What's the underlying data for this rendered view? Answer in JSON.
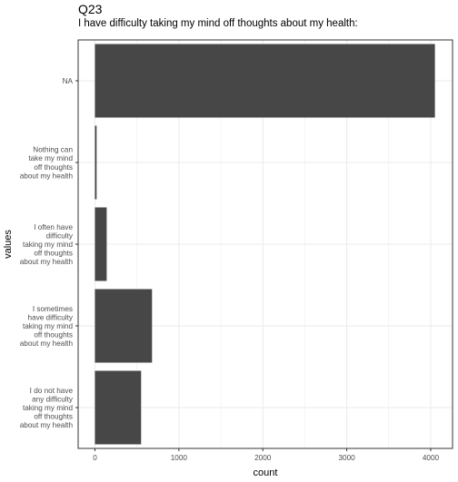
{
  "chart_data": {
    "type": "bar",
    "orientation": "horizontal",
    "title": "Q23",
    "subtitle": "I have difficulty taking my mind off thoughts about my health:",
    "xlabel": "count",
    "ylabel": "values",
    "categories": [
      "NA",
      "Nothing can take my mind off thoughts about my health",
      "I often have difficulty taking my mind off thoughts about my health",
      "I sometimes have difficulty taking my mind off thoughts about my health",
      "I do not have any difficulty taking my mind off thoughts about my health"
    ],
    "category_lines": [
      [
        "NA"
      ],
      [
        "Nothing can",
        "take my mind",
        "off thoughts",
        "about my health"
      ],
      [
        "I often have",
        "difficulty",
        "taking my mind",
        "off thoughts",
        "about my health"
      ],
      [
        "I sometimes",
        "have difficulty",
        "taking my mind",
        "off thoughts",
        "about my health"
      ],
      [
        "I do not have",
        "any difficulty",
        "taking my mind",
        "off thoughts",
        "about my health"
      ]
    ],
    "values": [
      4050,
      20,
      140,
      680,
      550
    ],
    "xlim": [
      -200,
      4260
    ],
    "xticks": [
      0,
      1000,
      2000,
      3000,
      4000
    ],
    "xtick_labels": [
      "0",
      "1000",
      "2000",
      "3000",
      "4000"
    ],
    "grid": true,
    "bar_color": "#474747",
    "panel_border_color": "#333333",
    "grid_color": "#ebebeb"
  }
}
